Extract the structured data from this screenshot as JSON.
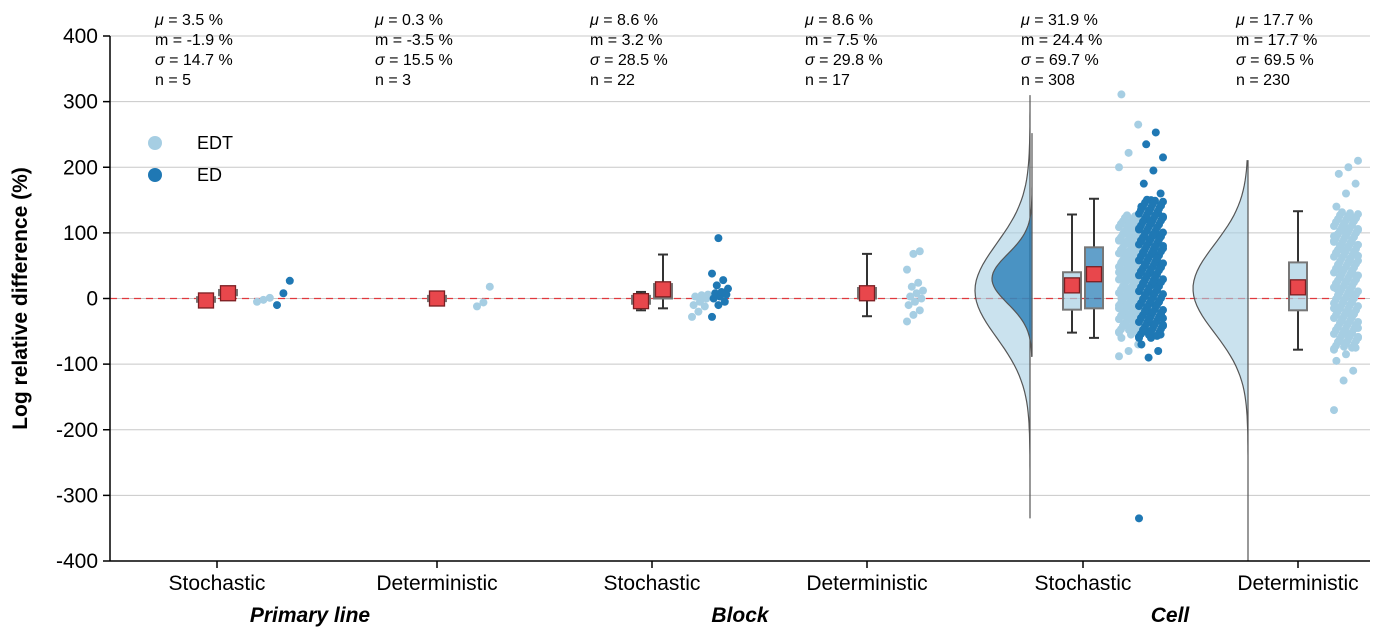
{
  "chart_data": {
    "type": "raincloud",
    "ylabel": "Log relative difference (%)",
    "ylim": [
      -400,
      400
    ],
    "yticks": [
      400,
      300,
      200,
      100,
      0,
      -100,
      -200,
      -300,
      -400
    ],
    "grid": "horizontal",
    "reference_line": {
      "y": 0,
      "style": "dashed",
      "color": "#e0393e"
    },
    "legend": {
      "placement": "upper-left",
      "entries": [
        "EDT",
        "ED"
      ]
    },
    "colors": {
      "EDT": "#a6cee3",
      "ED": "#1f78b4",
      "mean_marker": "#e8474c"
    },
    "categories": [
      {
        "label": "Stochastic",
        "group": "Primary line",
        "stats": [
          "3.5 %",
          "-1.9 %",
          "14.7 %",
          "5"
        ]
      },
      {
        "label": "Deterministic",
        "group": "Primary line",
        "stats": [
          "0.3 %",
          "-3.5 %",
          "15.5 %",
          "3"
        ]
      },
      {
        "label": "Stochastic",
        "group": "Block",
        "stats": [
          "8.6 %",
          "3.2 %",
          "28.5 %",
          "22"
        ]
      },
      {
        "label": "Deterministic",
        "group": "Block",
        "stats": [
          "8.6 %",
          "7.5 %",
          "29.8 %",
          "17"
        ]
      },
      {
        "label": "Stochastic",
        "group": "Cell",
        "stats": [
          "31.9 %",
          "24.4 %",
          "69.7 %",
          "308"
        ]
      },
      {
        "label": "Deterministic",
        "group": "Cell",
        "stats": [
          "17.7 %",
          "17.7 %",
          "69.5 %",
          "230"
        ]
      }
    ],
    "stat_symbols": [
      "μ",
      "m",
      "σ",
      "n"
    ],
    "groups": [
      "Primary line",
      "Block",
      "Cell"
    ],
    "series": [
      {
        "name": "EDT",
        "category": 0,
        "box": {
          "q1": -5,
          "median": -2,
          "q3": 2,
          "wlow": -6,
          "whigh": 3
        },
        "mean": -3,
        "points": [
          -5,
          -2,
          1
        ]
      },
      {
        "name": "ED",
        "category": 0,
        "box": {
          "q1": 5,
          "median": 9,
          "q3": 13,
          "wlow": 4,
          "whigh": 14
        },
        "mean": 8,
        "points": [
          -10,
          8,
          27
        ]
      },
      {
        "name": "EDT",
        "category": 1,
        "box": {
          "q1": -4,
          "median": 0,
          "q3": 4,
          "wlow": -5,
          "whigh": 5
        },
        "mean": 0,
        "points": [
          -12,
          -6,
          18
        ]
      },
      {
        "name": "EDT",
        "category": 2,
        "box": {
          "q1": -8,
          "median": -2,
          "q3": 4,
          "wlow": -18,
          "whigh": 10
        },
        "mean": -4,
        "points": [
          -28,
          -20,
          -12,
          -10,
          -5,
          0,
          3,
          5,
          6
        ]
      },
      {
        "name": "ED",
        "category": 2,
        "box": {
          "q1": 0,
          "median": 8,
          "q3": 22,
          "wlow": -15,
          "whigh": 67
        },
        "mean": 14,
        "points": [
          -28,
          -10,
          -5,
          0,
          3,
          6,
          8,
          10,
          15,
          20,
          28,
          38,
          92
        ]
      },
      {
        "name": "EDT",
        "category": 3,
        "box": {
          "q1": 0,
          "median": 8,
          "q3": 16,
          "wlow": -27,
          "whigh": 68
        },
        "mean": 8,
        "points": [
          -35,
          -25,
          -18,
          -10,
          -5,
          0,
          3,
          8,
          12,
          18,
          24,
          44,
          68,
          72
        ]
      },
      {
        "name": "EDT",
        "category": 4,
        "box": {
          "q1": -17,
          "median": 12,
          "q3": 40,
          "wlow": -52,
          "whigh": 128
        },
        "mean": 20,
        "violin_range": [
          -335,
          310
        ],
        "points": [
          -88,
          -80,
          -70,
          -60,
          -55,
          -45,
          -40,
          -35,
          -30,
          -25,
          -20,
          -15,
          -10,
          -5,
          0,
          5,
          10,
          15,
          20,
          25,
          30,
          35,
          40,
          45,
          50,
          55,
          60,
          65,
          70,
          75,
          85,
          100,
          120,
          200,
          222,
          265,
          311
        ]
      },
      {
        "name": "ED",
        "category": 4,
        "box": {
          "q1": -15,
          "median": 30,
          "q3": 78,
          "wlow": -60,
          "whigh": 152
        },
        "mean": 37,
        "violin_range": [
          -88,
          252
        ],
        "points": [
          -335,
          -90,
          -80,
          -70,
          -60,
          -55,
          -50,
          -40,
          -30,
          -20,
          -10,
          0,
          10,
          20,
          30,
          40,
          50,
          60,
          70,
          80,
          90,
          100,
          110,
          120,
          130,
          140,
          150,
          160,
          175,
          195,
          215,
          235,
          253
        ]
      },
      {
        "name": "EDT",
        "category": 5,
        "box": {
          "q1": -18,
          "median": 15,
          "q3": 55,
          "wlow": -78,
          "whigh": 133
        },
        "mean": 17,
        "violin_range": [
          -400,
          210
        ],
        "points": [
          -170,
          -125,
          -110,
          -95,
          -85,
          -75,
          -65,
          -55,
          -45,
          -35,
          -25,
          -15,
          -5,
          5,
          15,
          25,
          35,
          45,
          55,
          65,
          75,
          85,
          95,
          105,
          120,
          140,
          160,
          175,
          190,
          200,
          210
        ]
      }
    ]
  }
}
